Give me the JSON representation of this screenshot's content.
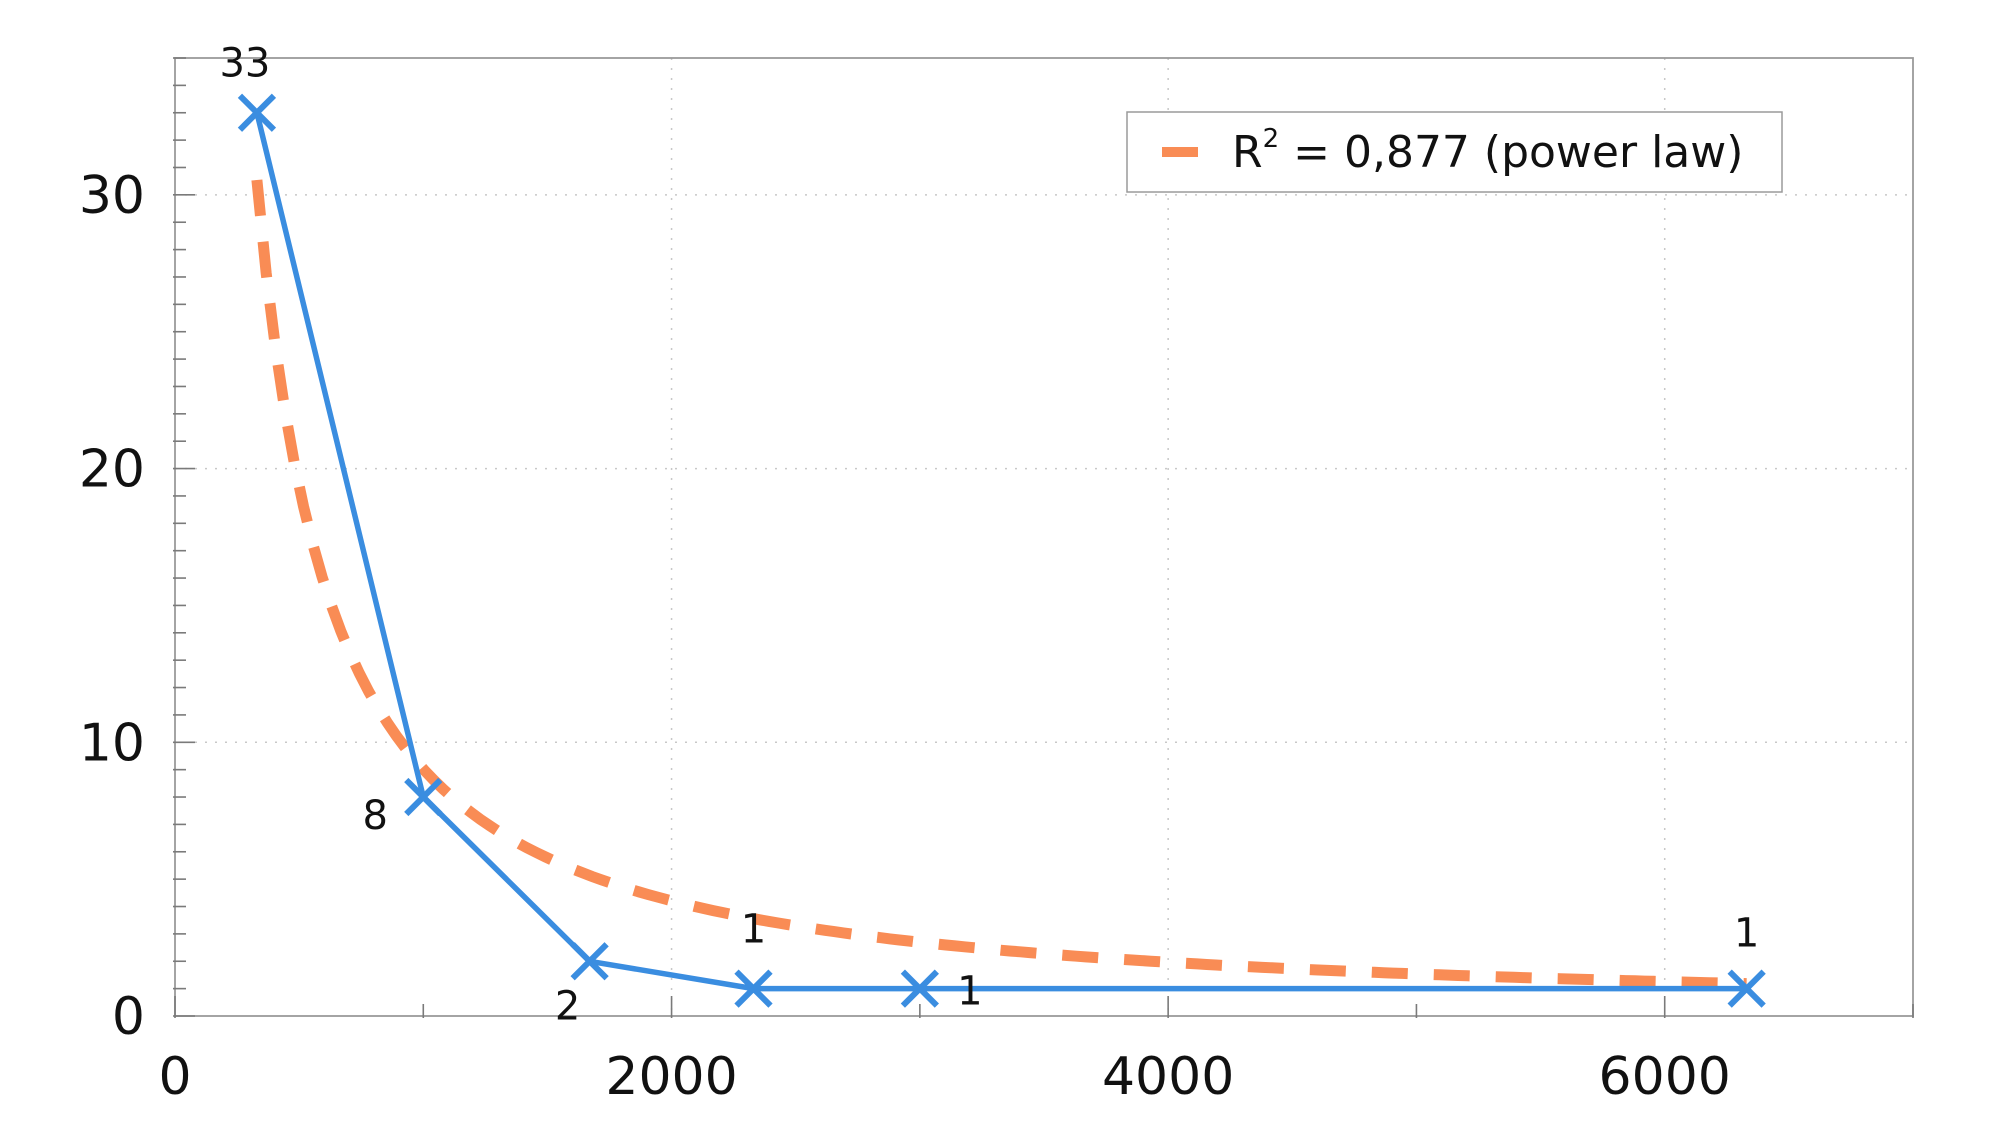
{
  "chart_data": {
    "type": "line",
    "title": "",
    "xlabel": "",
    "ylabel": "",
    "xlim": [
      0,
      7000
    ],
    "ylim": [
      0,
      35
    ],
    "grid": true,
    "legend_position": "top-right",
    "x_ticks": [
      0,
      2000,
      4000,
      6000
    ],
    "x_tick_labels": [
      "0",
      "2000",
      "4000",
      "6000"
    ],
    "y_ticks": [
      0,
      10,
      20,
      30
    ],
    "y_tick_labels": [
      "0",
      "10",
      "20",
      "30"
    ],
    "series": [
      {
        "marker": "x",
        "color": "#3a8de0",
        "x": [
          330,
          1000,
          1670,
          2330,
          3000,
          6330
        ],
        "y": [
          33,
          8,
          2,
          1,
          1,
          1
        ],
        "data_labels": [
          "33",
          "8",
          "2",
          "1",
          "1",
          "1"
        ]
      },
      {
        "name_prefix": "R",
        "name_sup": "2",
        "name_suffix": " = 0,877 (power law)",
        "style": "dashed",
        "color": "#f98c55",
        "fit": {
          "type": "power",
          "a": 18000,
          "b": -1.1
        },
        "x_range": [
          330,
          6330
        ]
      }
    ]
  }
}
